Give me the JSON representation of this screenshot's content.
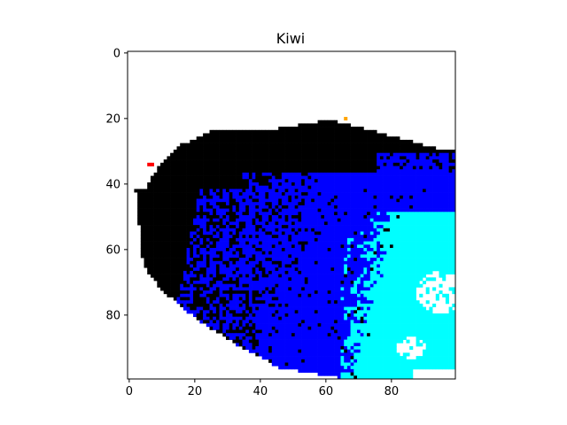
{
  "chart_data": {
    "type": "heatmap",
    "title": "Kiwi",
    "xlabel": "",
    "ylabel": "",
    "grid": false,
    "legend": "none",
    "x_range": [
      -0.5,
      99.5
    ],
    "y_range": [
      99.5,
      -0.5
    ],
    "x_ticks": [
      0,
      20,
      40,
      60,
      80
    ],
    "y_ticks": [
      0,
      20,
      40,
      60,
      80
    ],
    "x_tick_labels": [
      "0",
      "20",
      "40",
      "60",
      "80"
    ],
    "y_tick_labels": [
      "0",
      "20",
      "40",
      "60",
      "80"
    ],
    "grid_size": [
      100,
      100
    ],
    "category_colors": {
      "background": "#ffffff",
      "class_0": "#000000",
      "class_1": "#0000ff",
      "class_2": "#00ffff",
      "class_3": "#ff0000",
      "class_4": "#ffa500"
    },
    "regions_description_values": {
      "black_region_rows": [
        21,
        97
      ],
      "blue_region_rows": [
        31,
        99
      ],
      "cyan_region_rows": [
        48,
        99
      ],
      "red_pixel": [
        6,
        34
      ],
      "orange_pixel": [
        66,
        20
      ]
    }
  }
}
